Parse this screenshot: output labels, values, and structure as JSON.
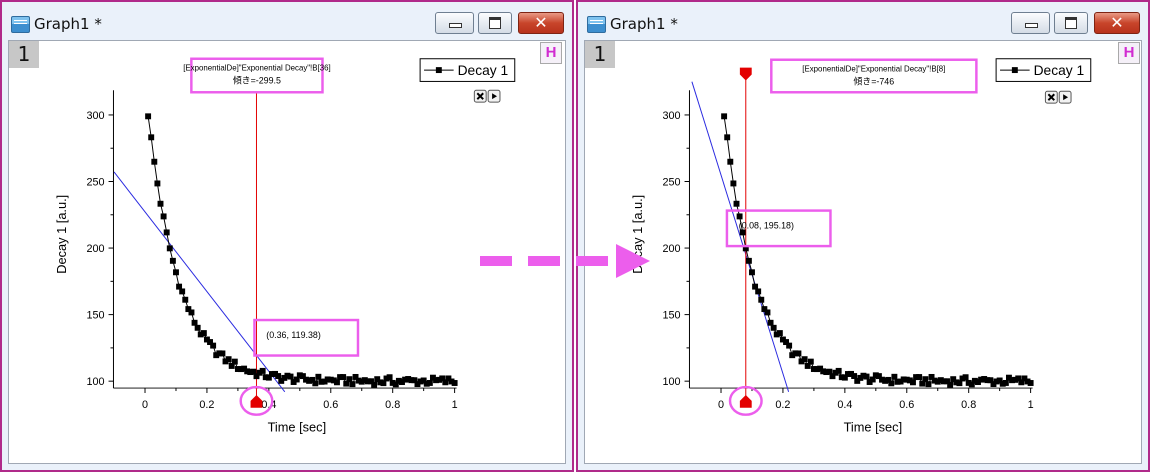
{
  "colors": {
    "highlight": "#ec5eec",
    "cursor": "#e30000",
    "tangent": "#2a2ae0",
    "data": "#000000"
  },
  "windows": [
    {
      "title": "Graph1 *",
      "layer": "1",
      "h_button": "H",
      "close_glyph": "✕",
      "legend_label": "Decay 1",
      "xlabel": "Time [sec]",
      "ylabel": "Decay 1 [a.u.]",
      "x_ticks": [
        "0",
        "0.2",
        "0.4",
        "0.6",
        "0.8",
        "1"
      ],
      "y_ticks": [
        "100",
        "150",
        "200",
        "250",
        "300"
      ],
      "annotation": {
        "line1": "[ExponentialDe]\"Exponential Decay\"!B[36]",
        "line2": "傾き=-299.5"
      },
      "point_label": "(0.36, 119.38)"
    },
    {
      "title": "Graph1 *",
      "layer": "1",
      "h_button": "H",
      "close_glyph": "✕",
      "legend_label": "Decay 1",
      "xlabel": "Time [sec]",
      "ylabel": "Decay 1 [a.u.]",
      "x_ticks": [
        "0",
        "0.2",
        "0.4",
        "0.6",
        "0.8",
        "1"
      ],
      "y_ticks": [
        "100",
        "150",
        "200",
        "250",
        "300"
      ],
      "annotation": {
        "line1": "[ExponentialDe]\"Exponential Decay\"!B[8]",
        "line2": "傾き=-746"
      },
      "point_label": "(0.08, 195.18)"
    }
  ],
  "chart_data": [
    {
      "type": "scatter",
      "series": [
        {
          "name": "Decay 1",
          "decay": {
            "amplitude": 222,
            "rate": 10,
            "offset": 100,
            "x_start": 0.01,
            "x_end": 1.0,
            "step": 0.01
          }
        }
      ],
      "xlabel": "Time [sec]",
      "ylabel": "Decay 1 [a.u.]",
      "xlim": [
        -0.1,
        1.05
      ],
      "ylim": [
        92,
        325
      ],
      "cursor": {
        "x": 0.36,
        "y": 119.38,
        "slope": -299.5
      }
    },
    {
      "type": "scatter",
      "series": [
        {
          "name": "Decay 1",
          "decay": {
            "amplitude": 222,
            "rate": 10,
            "offset": 100,
            "x_start": 0.01,
            "x_end": 1.0,
            "step": 0.01
          }
        }
      ],
      "xlabel": "Time [sec]",
      "ylabel": "Decay 1 [a.u.]",
      "xlim": [
        -0.1,
        1.05
      ],
      "ylim": [
        92,
        325
      ],
      "cursor": {
        "x": 0.08,
        "y": 195.18,
        "slope": -746
      }
    }
  ]
}
